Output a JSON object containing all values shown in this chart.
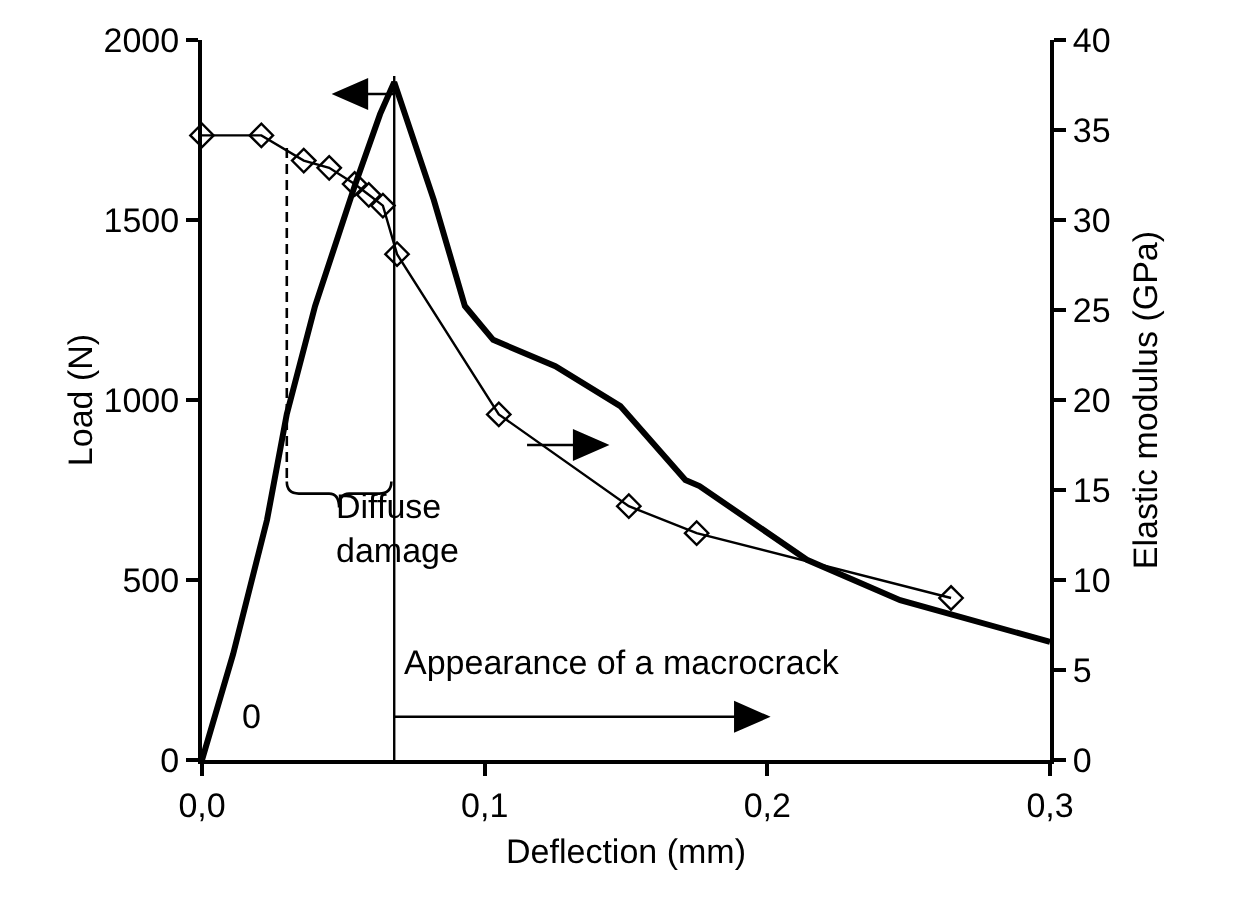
{
  "chart_data": {
    "type": "line",
    "xlabel": "Deflection (mm)",
    "ylabel": "Load (N)",
    "y2label": "Elastic modulus (GPa)",
    "xlim": [
      0,
      0.3
    ],
    "xticks": [
      {
        "value": 0,
        "label": "0,0"
      },
      {
        "value": 0.1,
        "label": "0,1"
      },
      {
        "value": 0.2,
        "label": "0,2"
      },
      {
        "value": 0.3,
        "label": "0,3"
      }
    ],
    "ylim": [
      0,
      2000
    ],
    "yticks": [
      0,
      500,
      1000,
      1500,
      2000
    ],
    "y2lim": [
      0,
      40
    ],
    "y2ticks": [
      0,
      5,
      10,
      15,
      20,
      25,
      30,
      35,
      40
    ],
    "grid": false,
    "series": [
      {
        "color": "#000000",
        "marker": "none",
        "x": [
          0,
          0.011,
          0.023,
          0.03,
          0.04,
          0.054,
          0.063,
          0.068,
          0.082,
          0.093,
          0.103,
          0.125,
          0.148,
          0.171,
          0.176,
          0.214,
          0.247,
          0.3
        ],
        "values": [
          0,
          294,
          667,
          961,
          1261,
          1594,
          1794,
          1883,
          1556,
          1261,
          1167,
          1094,
          983,
          778,
          761,
          556,
          444,
          328
        ]
      },
      {
        "axis": "y2",
        "color": "#000000",
        "marker": "diamond",
        "x": [
          0,
          0.021,
          0.036,
          0.045,
          0.054,
          0.059,
          0.064,
          0.069,
          0.105,
          0.151,
          0.175,
          0.265
        ],
        "values": [
          34.7,
          34.7,
          33.3,
          32.9,
          32,
          31.4,
          30.8,
          28.1,
          19.2,
          14.1,
          12.6,
          9
        ]
      }
    ],
    "ref_lines": [
      {
        "axis": "x",
        "value": 0.068,
        "color": "#000000",
        "line_style": "solid"
      }
    ],
    "annotations": [
      "0",
      "Diffuse damage",
      "Appearance of a macrocrack"
    ]
  }
}
